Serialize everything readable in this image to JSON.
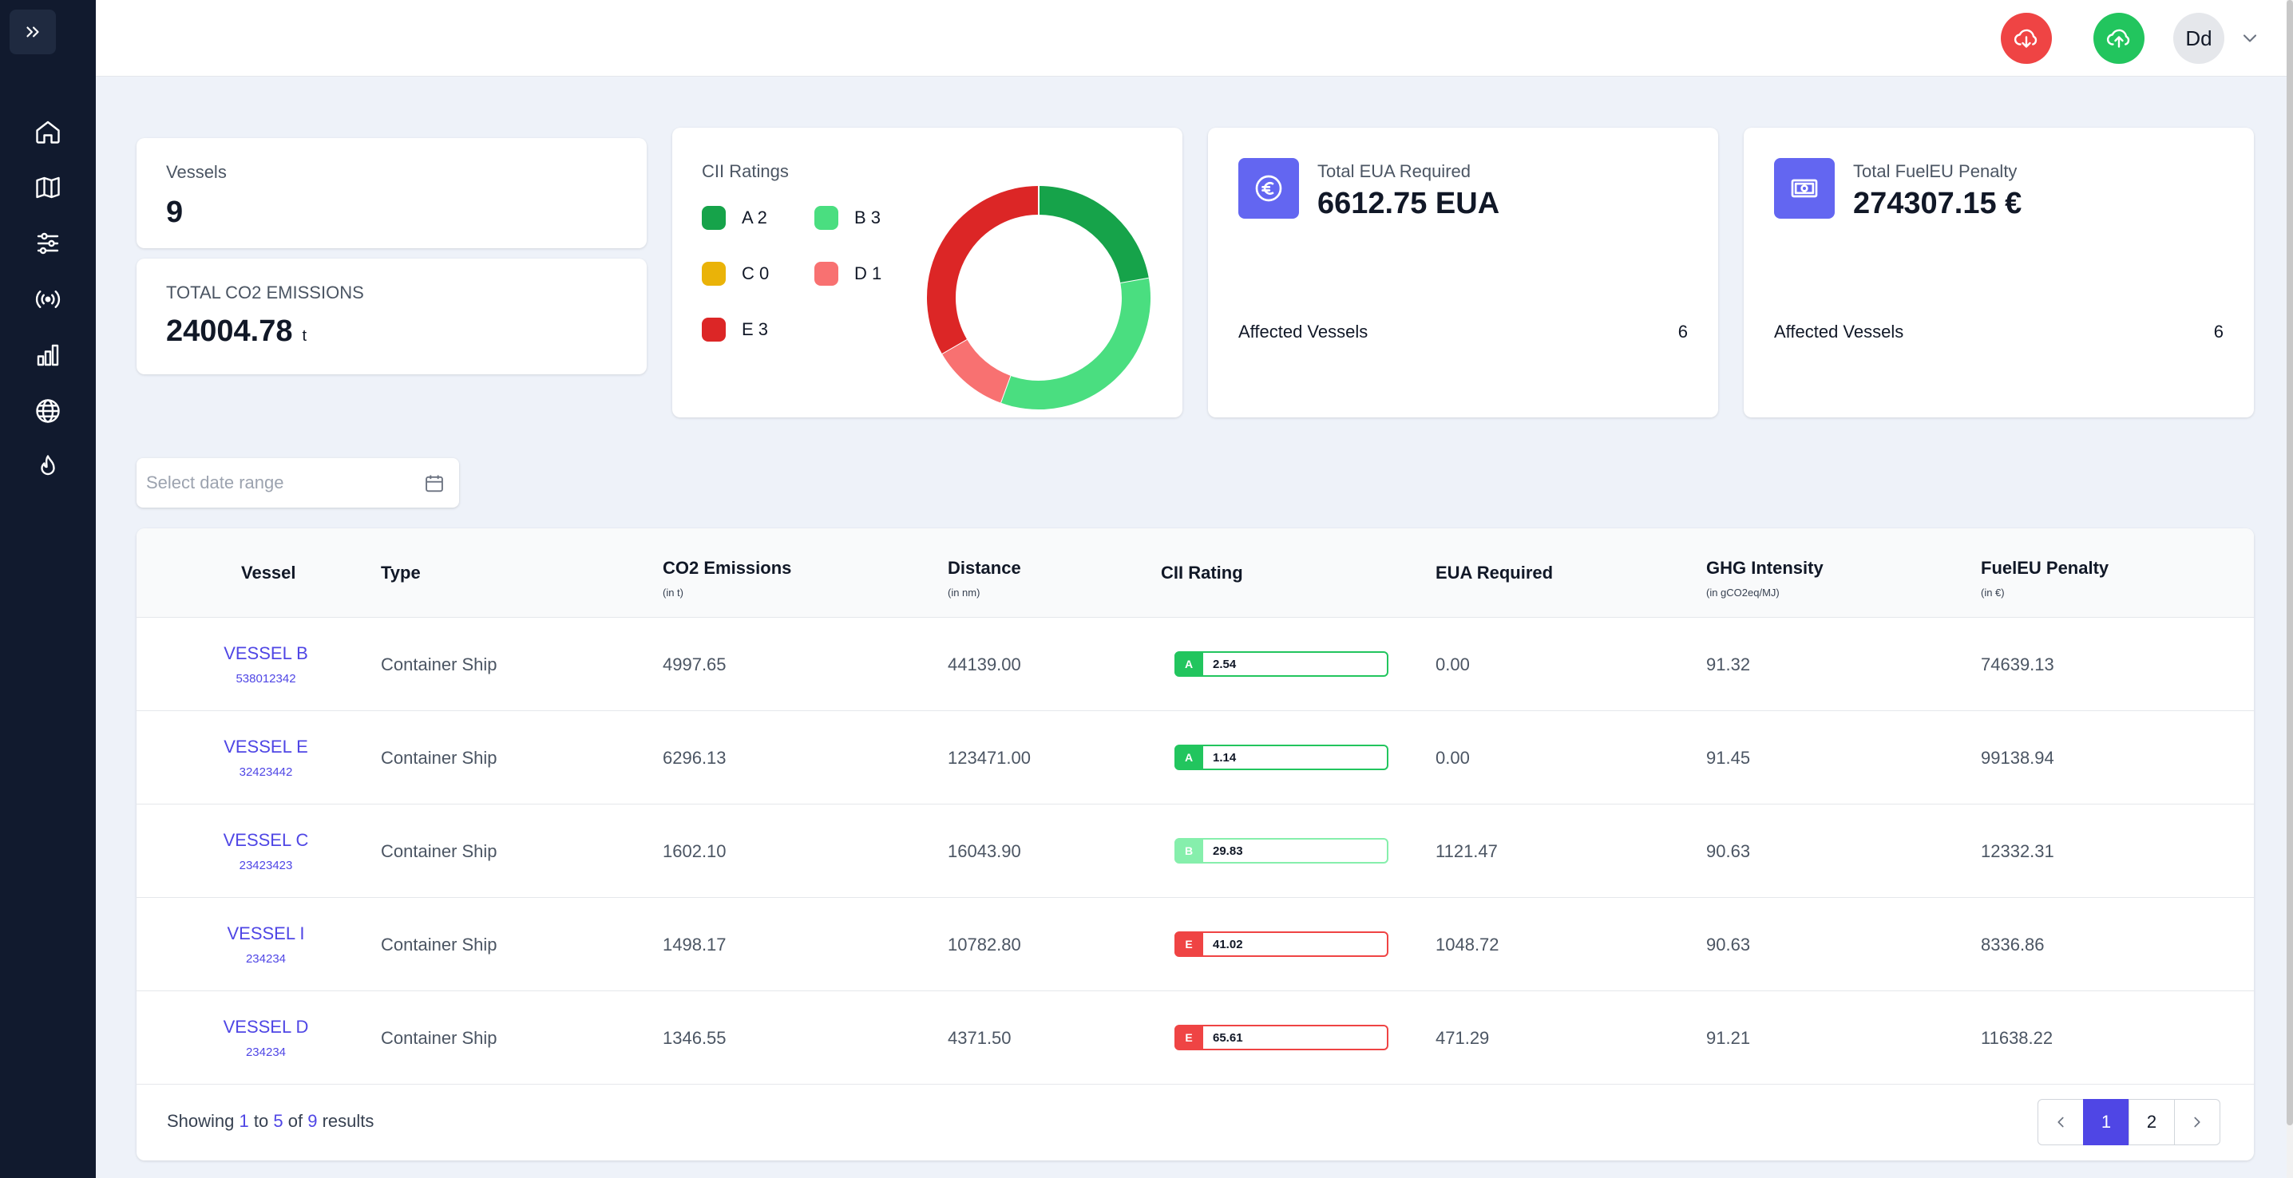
{
  "header": {
    "avatar_initials": "Dd"
  },
  "sidebar": {
    "items": [
      {
        "icon": "home-icon"
      },
      {
        "icon": "map-icon"
      },
      {
        "icon": "sliders-icon"
      },
      {
        "icon": "broadcast-icon"
      },
      {
        "icon": "bar-chart-icon"
      },
      {
        "icon": "globe-icon"
      },
      {
        "icon": "flame-icon"
      }
    ]
  },
  "stats": {
    "vessels_label": "Vessels",
    "vessels_value": "9",
    "co2_label": "TOTAL CO2 EMISSIONS",
    "co2_value": "24004.78",
    "co2_unit": "t"
  },
  "cii": {
    "title": "CII Ratings",
    "ratings": [
      {
        "grade": "A",
        "count": 2,
        "label": "A 2",
        "color": "#16a34a"
      },
      {
        "grade": "B",
        "count": 3,
        "label": "B 3",
        "color": "#4ade80"
      },
      {
        "grade": "C",
        "count": 0,
        "label": "C 0",
        "color": "#eab308"
      },
      {
        "grade": "D",
        "count": 1,
        "label": "D 1",
        "color": "#f87171"
      },
      {
        "grade": "E",
        "count": 3,
        "label": "E 3",
        "color": "#dc2626"
      }
    ]
  },
  "eua": {
    "label": "Total EUA Required",
    "value": "6612.75 EUA",
    "affected_label": "Affected Vessels",
    "affected_value": "6"
  },
  "penalty": {
    "label": "Total FuelEU Penalty",
    "value": "274307.15 €",
    "affected_label": "Affected Vessels",
    "affected_value": "6"
  },
  "filter": {
    "date_placeholder": "Select date range"
  },
  "table": {
    "headers": [
      {
        "label": "Vessel",
        "sub": ""
      },
      {
        "label": "Type",
        "sub": ""
      },
      {
        "label": "CO2 Emissions",
        "sub": "(in t)"
      },
      {
        "label": "Distance",
        "sub": "(in nm)"
      },
      {
        "label": "CII Rating",
        "sub": ""
      },
      {
        "label": "EUA Required",
        "sub": ""
      },
      {
        "label": "GHG Intensity",
        "sub": "(in gCO2eq/MJ)"
      },
      {
        "label": "FuelEU Penalty",
        "sub": "(in €)"
      }
    ],
    "rows": [
      {
        "name": "VESSEL B",
        "id": "538012342",
        "type": "Container Ship",
        "co2": "4997.65",
        "distance": "44139.00",
        "cii_grade": "A",
        "cii_value": "2.54",
        "eua": "0.00",
        "ghg": "91.32",
        "penalty": "74639.13"
      },
      {
        "name": "VESSEL E",
        "id": "32423442",
        "type": "Container Ship",
        "co2": "6296.13",
        "distance": "123471.00",
        "cii_grade": "A",
        "cii_value": "1.14",
        "eua": "0.00",
        "ghg": "91.45",
        "penalty": "99138.94"
      },
      {
        "name": "VESSEL C",
        "id": "23423423",
        "type": "Container Ship",
        "co2": "1602.10",
        "distance": "16043.90",
        "cii_grade": "B",
        "cii_value": "29.83",
        "eua": "1121.47",
        "ghg": "90.63",
        "penalty": "12332.31"
      },
      {
        "name": "VESSEL I",
        "id": "234234",
        "type": "Container Ship",
        "co2": "1498.17",
        "distance": "10782.80",
        "cii_grade": "E",
        "cii_value": "41.02",
        "eua": "1048.72",
        "ghg": "90.63",
        "penalty": "8336.86"
      },
      {
        "name": "VESSEL D",
        "id": "234234",
        "type": "Container Ship",
        "co2": "1346.55",
        "distance": "4371.50",
        "cii_grade": "E",
        "cii_value": "65.61",
        "eua": "471.29",
        "ghg": "91.21",
        "penalty": "11638.22"
      }
    ],
    "grade_colors": {
      "A": "#22c55e",
      "B": "#86efac",
      "E": "#ef4444"
    }
  },
  "pagination": {
    "showing_prefix": "Showing",
    "from": "1",
    "to_word": "to",
    "to": "5",
    "of_word": "of",
    "total": "9",
    "results_word": "results",
    "pages": [
      "1",
      "2"
    ],
    "current_page": "1"
  }
}
